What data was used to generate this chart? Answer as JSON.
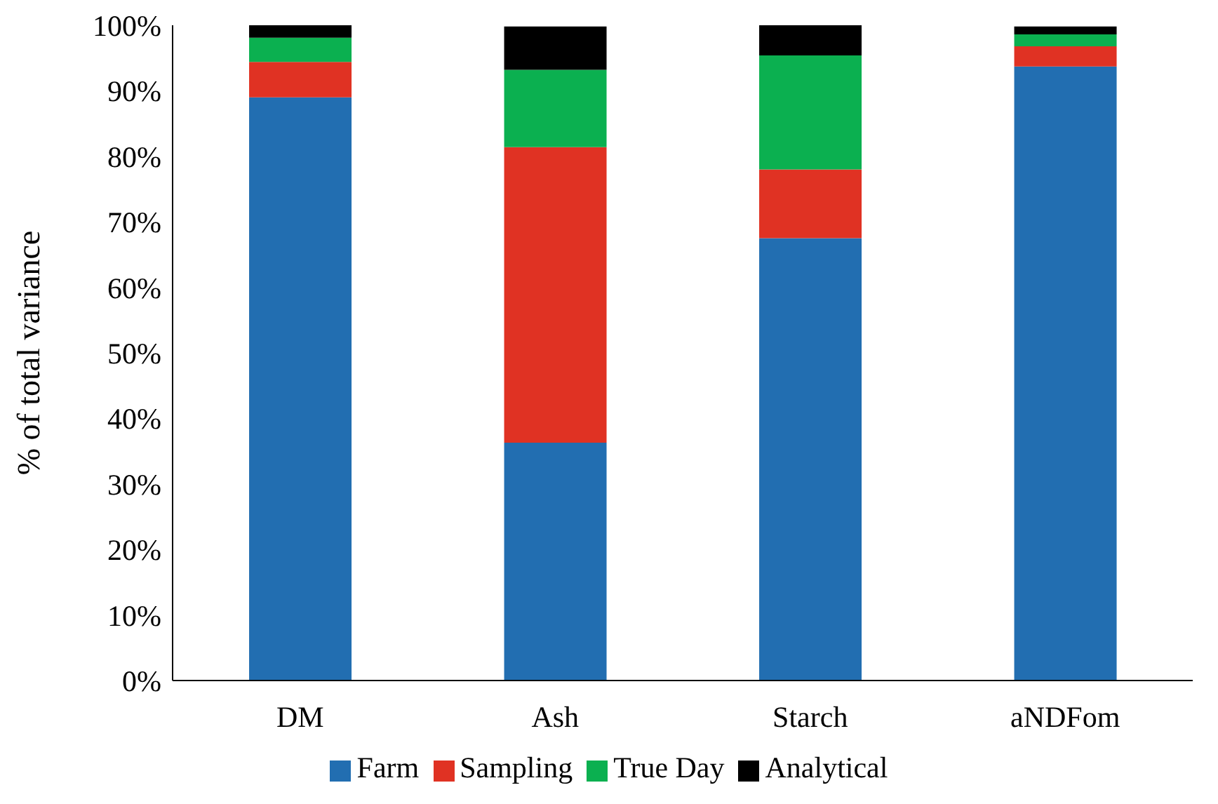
{
  "chart_data": {
    "type": "bar",
    "stacked": true,
    "ylabel": "% of total variance",
    "categories": [
      "DM",
      "Ash",
      "Starch",
      "aNDFom"
    ],
    "series": [
      {
        "name": "Farm",
        "color": "#226eb1",
        "values": [
          89.0,
          36.3,
          67.5,
          93.7
        ]
      },
      {
        "name": "Sampling",
        "color": "#e03223",
        "values": [
          5.4,
          45.1,
          10.5,
          3.1
        ]
      },
      {
        "name": "True Day",
        "color": "#0bb050",
        "values": [
          3.7,
          11.8,
          17.4,
          1.8
        ]
      },
      {
        "name": "Analytical",
        "color": "#000000",
        "values": [
          1.9,
          6.6,
          4.6,
          1.2
        ]
      }
    ],
    "ylim": [
      0,
      100
    ],
    "yticks": [
      {
        "value": 0,
        "label": "0%"
      },
      {
        "value": 10,
        "label": "10%"
      },
      {
        "value": 20,
        "label": "20%"
      },
      {
        "value": 30,
        "label": "30%"
      },
      {
        "value": 40,
        "label": "40%"
      },
      {
        "value": 50,
        "label": "50%"
      },
      {
        "value": 60,
        "label": "60%"
      },
      {
        "value": 70,
        "label": "70%"
      },
      {
        "value": 80,
        "label": "80%"
      },
      {
        "value": 90,
        "label": "90%"
      },
      {
        "value": 100,
        "label": "100%"
      }
    ],
    "grid": false,
    "legend": "bottom"
  }
}
